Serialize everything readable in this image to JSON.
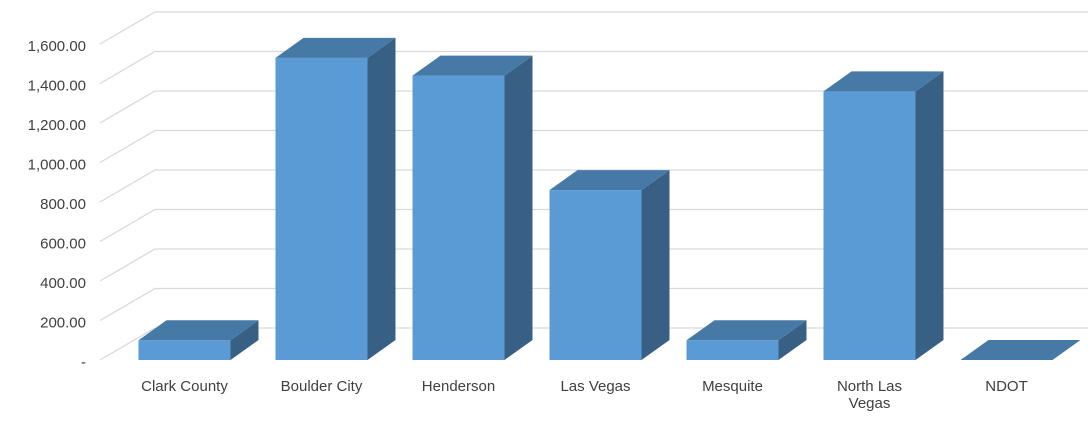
{
  "chart_data": {
    "type": "bar3d",
    "categories": [
      "Clark County",
      "Boulder City",
      "Henderson",
      "Las Vegas",
      "Mesquite",
      "North Las Vegas",
      "NDOT"
    ],
    "values": [
      100,
      1530,
      1440,
      860,
      100,
      1360,
      0
    ],
    "color": "#5b9bd5",
    "ylim": [
      0,
      1600
    ],
    "yticks": [
      {
        "value": 0,
        "label": "-"
      },
      {
        "value": 200,
        "label": "200.00"
      },
      {
        "value": 400,
        "label": "400.00"
      },
      {
        "value": 600,
        "label": "600.00"
      },
      {
        "value": 800,
        "label": "800.00"
      },
      {
        "value": 1000,
        "label": "1,000.00"
      },
      {
        "value": 1200,
        "label": "1,200.00"
      },
      {
        "value": 1400,
        "label": "1,400.00"
      },
      {
        "value": 1600,
        "label": "1,600.00"
      }
    ],
    "grid": true
  }
}
